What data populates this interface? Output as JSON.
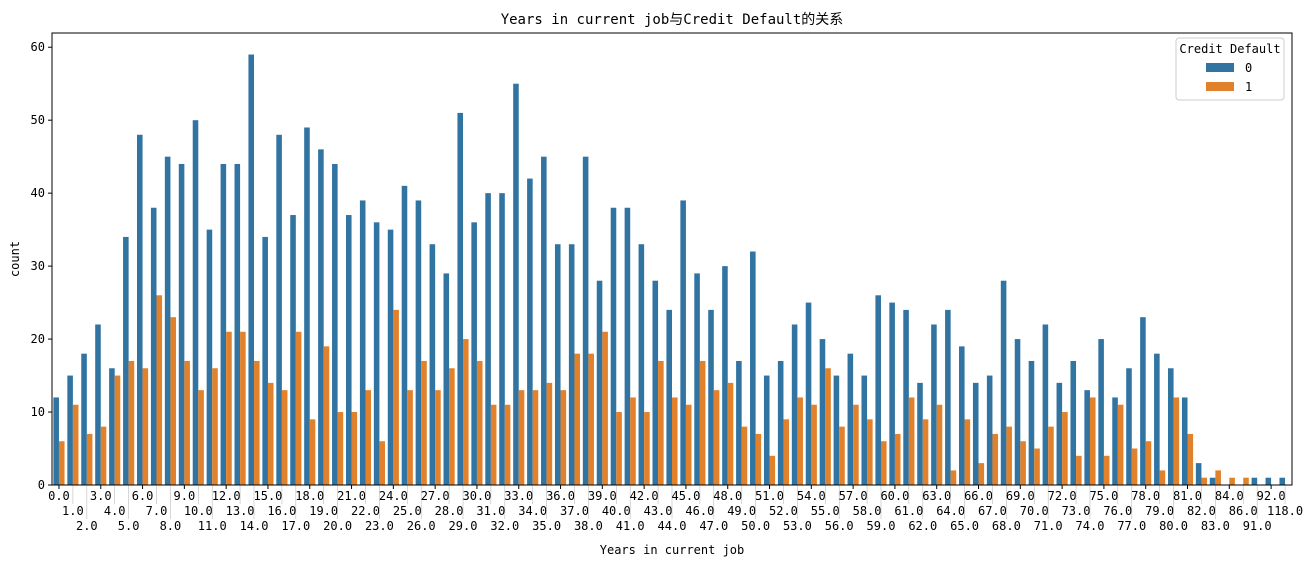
{
  "chart_data": {
    "type": "bar",
    "title": "Years in current job与Credit Default的关系",
    "xlabel": "Years in current job",
    "ylabel": "count",
    "ylim": [
      0,
      61.95
    ],
    "yticks": [
      0,
      10,
      20,
      30,
      40,
      50,
      60
    ],
    "grid": false,
    "legend": {
      "title": "Credit Default",
      "placement": "top-right"
    },
    "colors": {
      "0": "#3274a1",
      "1": "#e1812c"
    },
    "categories": [
      "0.0",
      "1.0",
      "2.0",
      "3.0",
      "4.0",
      "5.0",
      "6.0",
      "7.0",
      "8.0",
      "9.0",
      "10.0",
      "11.0",
      "12.0",
      "13.0",
      "14.0",
      "15.0",
      "16.0",
      "17.0",
      "18.0",
      "19.0",
      "20.0",
      "21.0",
      "22.0",
      "23.0",
      "24.0",
      "25.0",
      "26.0",
      "27.0",
      "28.0",
      "29.0",
      "30.0",
      "31.0",
      "32.0",
      "33.0",
      "34.0",
      "35.0",
      "36.0",
      "37.0",
      "38.0",
      "39.0",
      "40.0",
      "41.0",
      "42.0",
      "43.0",
      "44.0",
      "45.0",
      "46.0",
      "47.0",
      "48.0",
      "49.0",
      "50.0",
      "51.0",
      "52.0",
      "53.0",
      "54.0",
      "55.0",
      "56.0",
      "57.0",
      "58.0",
      "59.0",
      "60.0",
      "61.0",
      "62.0",
      "63.0",
      "64.0",
      "65.0",
      "66.0",
      "67.0",
      "68.0",
      "69.0",
      "70.0",
      "71.0",
      "72.0",
      "73.0",
      "74.0",
      "75.0",
      "76.0",
      "77.0",
      "78.0",
      "79.0",
      "80.0",
      "81.0",
      "82.0",
      "83.0",
      "84.0",
      "86.0",
      "91.0",
      "92.0",
      "118.0"
    ],
    "series": [
      {
        "name": "0",
        "values": [
          12,
          15,
          18,
          22,
          16,
          34,
          48,
          38,
          45,
          44,
          50,
          35,
          44,
          44,
          59,
          34,
          48,
          37,
          49,
          46,
          44,
          37,
          39,
          36,
          35,
          41,
          39,
          33,
          29,
          51,
          36,
          40,
          40,
          55,
          42,
          45,
          33,
          33,
          45,
          28,
          38,
          38,
          33,
          28,
          24,
          39,
          29,
          24,
          30,
          17,
          32,
          15,
          17,
          22,
          25,
          20,
          15,
          18,
          15,
          26,
          25,
          24,
          14,
          22,
          24,
          19,
          14,
          15,
          28,
          20,
          17,
          22,
          14,
          17,
          13,
          20,
          12,
          16,
          23,
          18,
          16,
          12,
          3,
          1,
          0,
          0,
          1,
          1,
          1
        ]
      },
      {
        "name": "1",
        "values": [
          6,
          11,
          7,
          8,
          15,
          17,
          16,
          26,
          23,
          17,
          13,
          16,
          21,
          21,
          17,
          14,
          13,
          21,
          9,
          19,
          10,
          10,
          13,
          6,
          24,
          13,
          17,
          13,
          16,
          20,
          17,
          11,
          11,
          13,
          13,
          14,
          13,
          18,
          18,
          21,
          10,
          12,
          10,
          17,
          12,
          11,
          17,
          13,
          14,
          8,
          7,
          4,
          9,
          12,
          11,
          16,
          8,
          11,
          9,
          6,
          7,
          12,
          9,
          11,
          2,
          9,
          3,
          7,
          8,
          6,
          5,
          8,
          10,
          4,
          12,
          4,
          11,
          5,
          6,
          2,
          12,
          7,
          1,
          2,
          1,
          1,
          0,
          0,
          0
        ]
      }
    ]
  }
}
